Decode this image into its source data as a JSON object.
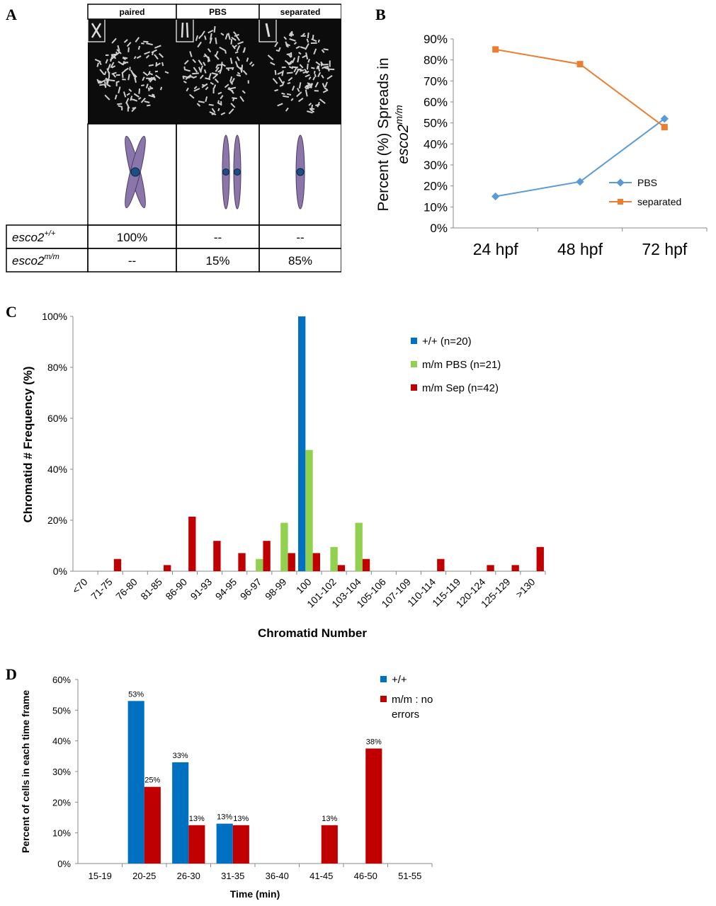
{
  "panel_letters": [
    "A",
    "B",
    "C",
    "D"
  ],
  "panelA": {
    "headers": [
      "paired",
      "PBS",
      "separated"
    ],
    "rows": [
      {
        "label_main": "esco2",
        "label_sup": "+/+",
        "values": [
          "100%",
          "--",
          "--"
        ]
      },
      {
        "label_main": "esco2",
        "label_sup": "m/m",
        "values": [
          "--",
          "15%",
          "85%"
        ]
      }
    ],
    "chromosome_color": "#8a76a8",
    "centromere_color": "#1d4e86"
  },
  "chart_data": [
    {
      "panel": "B",
      "type": "line",
      "categories": [
        "24 hpf",
        "48 hpf",
        "72 hpf"
      ],
      "series": [
        {
          "name": "PBS",
          "values": [
            15,
            22,
            52
          ],
          "color": "#5b9bd5",
          "marker": "diamond"
        },
        {
          "name": "separated",
          "values": [
            85,
            78,
            48
          ],
          "color": "#ed7d31",
          "marker": "square"
        }
      ],
      "ylabel_main": "Percent (%) Spreads in",
      "ylabel_gene": "esco2",
      "ylabel_sup": "m/m",
      "ylim": [
        0,
        90
      ],
      "yticks": [
        "0%",
        "10%",
        "20%",
        "30%",
        "40%",
        "50%",
        "60%",
        "70%",
        "80%",
        "90%"
      ],
      "legend_position": "center-right"
    },
    {
      "panel": "C",
      "type": "bar",
      "categories": [
        "<70",
        "71-75",
        "76-80",
        "81-85",
        "86-90",
        "91-93",
        "94-95",
        "96-97",
        "98-99",
        "100",
        "101-102",
        "103-104",
        "105-106",
        "107-109",
        "110-114",
        "115-119",
        "120-124",
        "125-129",
        ">130"
      ],
      "series": [
        {
          "name": "+/+ (n=20)",
          "color": "#0070c0",
          "values": [
            0,
            0,
            0,
            0,
            0,
            0,
            0,
            0,
            0,
            100,
            0,
            0,
            0,
            0,
            0,
            0,
            0,
            0,
            0
          ]
        },
        {
          "name": "m/m PBS (n=21)",
          "color": "#92d050",
          "values": [
            0,
            0,
            0,
            0,
            0,
            0,
            0,
            4.8,
            19,
            47.6,
            9.5,
            19,
            0,
            0,
            0,
            0,
            0,
            0,
            0
          ]
        },
        {
          "name": "m/m Sep (n=42)",
          "color": "#c00000",
          "values": [
            0,
            4.8,
            0,
            2.4,
            21.4,
            11.9,
            7.1,
            11.9,
            7.1,
            7.1,
            2.4,
            4.8,
            0,
            0,
            4.8,
            0,
            2.4,
            2.4,
            9.5
          ]
        }
      ],
      "xlabel": "Chromatid Number",
      "ylabel": "Chromatid # Frequency (%)",
      "ylim": [
        0,
        100
      ],
      "yticks": [
        "0%",
        "20%",
        "40%",
        "60%",
        "80%",
        "100%"
      ],
      "legend_position": "top-right"
    },
    {
      "panel": "D",
      "type": "bar",
      "categories": [
        "15-19",
        "20-25",
        "26-30",
        "31-35",
        "36-40",
        "41-45",
        "46-50",
        "51-55"
      ],
      "series": [
        {
          "name": "+/+",
          "color": "#0070c0",
          "values": [
            0,
            53,
            33,
            13,
            0,
            0,
            0,
            0
          ],
          "labels": [
            "",
            "53%",
            "33%",
            "13%",
            "",
            "",
            "",
            ""
          ]
        },
        {
          "name": "m/m : no errors",
          "color": "#c00000",
          "values": [
            0,
            25,
            12.5,
            12.5,
            0,
            12.5,
            37.5,
            0
          ],
          "labels": [
            "",
            "25%",
            "13%",
            "13%",
            "",
            "13%",
            "38%",
            ""
          ]
        }
      ],
      "legend_lines": [
        "m/m : no",
        "errors"
      ],
      "xlabel": "Time (min)",
      "ylabel": "Percent of cells in each time frame",
      "ylim": [
        0,
        60
      ],
      "yticks": [
        "0%",
        "10%",
        "20%",
        "30%",
        "40%",
        "50%",
        "60%"
      ],
      "legend_position": "top-right"
    }
  ]
}
